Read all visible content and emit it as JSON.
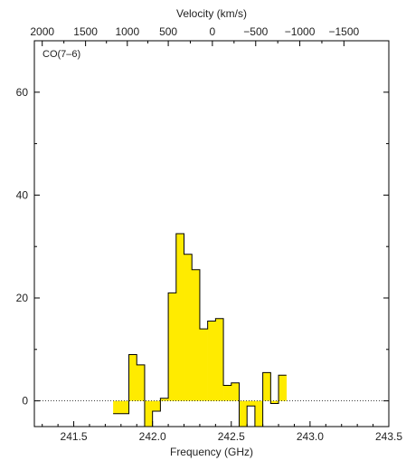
{
  "chart_data": {
    "type": "area",
    "panel_label": "CO(7–6)",
    "xlabel": "Frequency (GHz)",
    "top_xlabel": "Velocity (km/s)",
    "ylabel": "",
    "xlim": [
      241.25,
      243.5
    ],
    "ylim": [
      -5,
      70
    ],
    "grid": false,
    "bottom_ticks": {
      "values": [
        241.5,
        242.0,
        242.5,
        243.0,
        243.5
      ],
      "labels": [
        "241.5",
        "242.0",
        "242.5",
        "243.0",
        "243.5"
      ]
    },
    "left_ticks": {
      "values": [
        0,
        20,
        40,
        60
      ],
      "labels": [
        "0",
        "20",
        "40",
        "60"
      ]
    },
    "top_ticks": {
      "labels": [
        "2000",
        "1500",
        "1000",
        "500",
        "0",
        "−500",
        "−1000",
        "−1500"
      ],
      "frequencies": [
        241.3,
        241.575,
        241.84,
        242.1,
        242.38,
        242.655,
        242.935,
        243.215
      ]
    },
    "zero_line": "dotted",
    "fill_color": "#FFEB00",
    "series": [
      {
        "bins": [
          {
            "x0": 241.75,
            "x1": 241.8,
            "y": -2.5
          },
          {
            "x0": 241.8,
            "x1": 241.85,
            "y": -2.5
          },
          {
            "x0": 241.85,
            "x1": 241.9,
            "y": 9.0
          },
          {
            "x0": 241.9,
            "x1": 241.95,
            "y": 7.0
          },
          {
            "x0": 241.95,
            "x1": 242.0,
            "y": -5.0
          },
          {
            "x0": 242.0,
            "x1": 242.05,
            "y": -2.0
          },
          {
            "x0": 242.05,
            "x1": 242.1,
            "y": 0.5
          },
          {
            "x0": 242.1,
            "x1": 242.15,
            "y": 21.0
          },
          {
            "x0": 242.15,
            "x1": 242.2,
            "y": 32.5
          },
          {
            "x0": 242.2,
            "x1": 242.25,
            "y": 28.5
          },
          {
            "x0": 242.25,
            "x1": 242.3,
            "y": 25.5
          },
          {
            "x0": 242.3,
            "x1": 242.35,
            "y": 14.0
          },
          {
            "x0": 242.35,
            "x1": 242.4,
            "y": 15.5
          },
          {
            "x0": 242.4,
            "x1": 242.45,
            "y": 16.0
          },
          {
            "x0": 242.45,
            "x1": 242.5,
            "y": 3.0
          },
          {
            "x0": 242.5,
            "x1": 242.55,
            "y": 3.5
          },
          {
            "x0": 242.55,
            "x1": 242.6,
            "y": -5.0
          },
          {
            "x0": 242.6,
            "x1": 242.65,
            "y": -1.0
          },
          {
            "x0": 242.65,
            "x1": 242.7,
            "y": -5.0
          },
          {
            "x0": 242.7,
            "x1": 242.75,
            "y": 5.5
          },
          {
            "x0": 242.75,
            "x1": 242.8,
            "y": -0.5
          },
          {
            "x0": 242.8,
            "x1": 242.85,
            "y": 5.0
          }
        ]
      }
    ]
  }
}
